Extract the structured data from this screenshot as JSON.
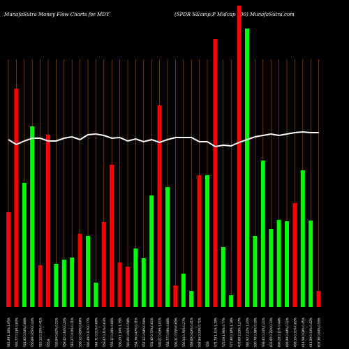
{
  "chart_data": {
    "type": "bar",
    "title": "MunafaSutra  Money Flow  Charts for MDY",
    "subtitle": "(SPDR S&amp;P Midcap 400) MunafaSutra.com",
    "categories": [
      "561.49 1.18% 1.95%",
      "555.77 0.13% 0.83%",
      "554.92 0.54% 0.89%",
      "556.89 0.65% 0.44%",
      "553.12 0.35% 0.41%",
      "555.9",
      "559.94 0.62% 0.21%",
      "559.45 0.44% 0.20%",
      "563.27 0.02% 0.31%",
      "558.12 0.65% 0.08%",
      "566.49 0.31% 0.77%",
      "564.71 0.51% 0.69%",
      "559.47 0.11% 0.63%",
      "559.11 0.26% 0.66%",
      "556.25 1.14% 1.35%",
      "560.86 0.66% 0.58%",
      "554.76 0.47% 0.31%",
      "557.32 0.58% 0.56%",
      "551.45 0.72% 0.61%",
      "549.01 0.03% 1.01%",
      "558.77 0.09% 0.88%",
      "556.31 0.55% 0.65%",
      "556.54 0.76% 0.27%",
      "559.69 0.63% 0.41%",
      "557.94 0.33% 0.71%",
      "559",
      "571.79 1.11% 1.39%",
      "575.09 1.96% 0.77%",
      "577.46 0.18% 1.18%",
      "603.69 2.25% 1.27%",
      "592.92 2.22% 1.25%",
      "590.78 0.38% 0.35%",
      "593.43 0.24% 0.21%",
      "603.65 0.35% 0.13%",
      "606.28 0.11% 0.44%",
      "609.99 0.48% 0.21%",
      "608.15 0.31% 0.82%",
      "614.58 0.08% 0.45%",
      "611.59 0.14% 0.42%",
      "607.36 0.64% 0.55%"
    ],
    "values": [
      136,
      313,
      178,
      259,
      60,
      247,
      62,
      68,
      71,
      105,
      102,
      35,
      122,
      204,
      64,
      58,
      84,
      70,
      160,
      289,
      172,
      31,
      48,
      23,
      189,
      189,
      384,
      86,
      17,
      432,
      399,
      102,
      210,
      112,
      125,
      123,
      149,
      196,
      124,
      23
    ],
    "colors": [
      "#ff0000",
      "#ff0000",
      "#00ff00",
      "#00ff00",
      "#ff0000",
      "#ff0000",
      "#00ff00",
      "#00ff00",
      "#00ff00",
      "#ff0000",
      "#00ff00",
      "#00ff00",
      "#ff0000",
      "#ff0000",
      "#ff0000",
      "#ff0000",
      "#00ff00",
      "#00ff00",
      "#00ff00",
      "#ff0000",
      "#00ff00",
      "#ff0000",
      "#00ff00",
      "#00ff00",
      "#ff0000",
      "#00ff00",
      "#ff0000",
      "#00ff00",
      "#00ff00",
      "#ff0000",
      "#00ff00",
      "#00ff00",
      "#00ff00",
      "#00ff00",
      "#00ff00",
      "#00ff00",
      "#ff0000",
      "#00ff00",
      "#00ff00",
      "#ff0000"
    ],
    "line_values": [
      240,
      233,
      238,
      242,
      242,
      238,
      238,
      242,
      244,
      240,
      247,
      248,
      246,
      242,
      243,
      238,
      241,
      237,
      240,
      236,
      240,
      243,
      243,
      243,
      237,
      237,
      230,
      232,
      231,
      236,
      240,
      244,
      246,
      248,
      246,
      248,
      250,
      251,
      250,
      250
    ],
    "line_color": "#ffffff",
    "grid_color": "#b35900",
    "ylim": [
      0,
      440
    ]
  }
}
